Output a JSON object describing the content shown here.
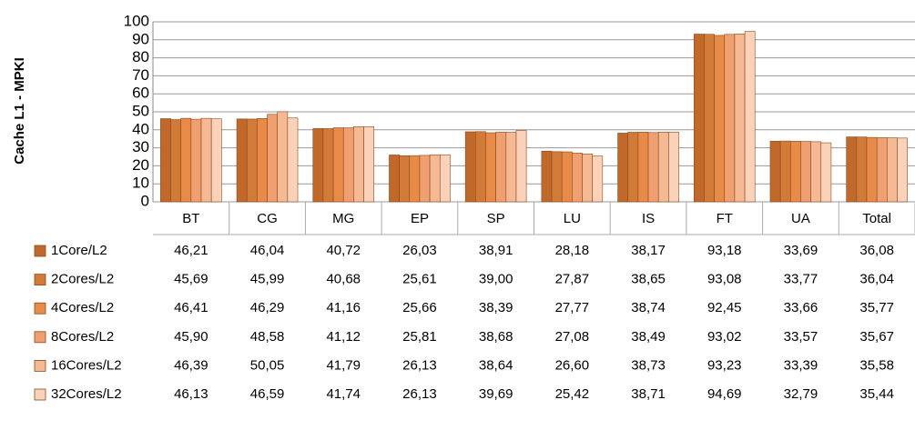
{
  "chart_data": {
    "type": "bar",
    "y_label": "Cache L1 - MPKI",
    "categories": [
      "BT",
      "CG",
      "MG",
      "EP",
      "SP",
      "LU",
      "IS",
      "FT",
      "UA",
      "Total"
    ],
    "ylim": [
      0,
      100
    ],
    "yticks": [
      0,
      10,
      20,
      30,
      40,
      50,
      60,
      70,
      80,
      90,
      100
    ],
    "grid": true,
    "series": [
      {
        "name": "1Core/L2",
        "color": "#c0692a",
        "values": [
          46.21,
          46.04,
          40.72,
          26.03,
          38.91,
          28.18,
          38.17,
          93.18,
          33.69,
          36.08
        ],
        "value_labels": [
          "46,21",
          "46,04",
          "40,72",
          "26,03",
          "38,91",
          "28,18",
          "38,17",
          "93,18",
          "33,69",
          "36,08"
        ]
      },
      {
        "name": "2Cores/L2",
        "color": "#d27a38",
        "values": [
          45.69,
          45.99,
          40.68,
          25.61,
          39.0,
          27.87,
          38.65,
          93.08,
          33.77,
          36.04
        ],
        "value_labels": [
          "45,69",
          "45,99",
          "40,68",
          "25,61",
          "39,00",
          "27,87",
          "38,65",
          "93,08",
          "33,77",
          "36,04"
        ]
      },
      {
        "name": "4Cores/L2",
        "color": "#e88a48",
        "values": [
          46.41,
          46.29,
          41.16,
          25.66,
          38.39,
          27.77,
          38.74,
          92.45,
          33.66,
          35.77
        ],
        "value_labels": [
          "46,41",
          "46,29",
          "41,16",
          "25,66",
          "38,39",
          "27,77",
          "38,74",
          "92,45",
          "33,66",
          "35,77"
        ]
      },
      {
        "name": "8Cores/L2",
        "color": "#f0a070",
        "values": [
          45.9,
          48.58,
          41.12,
          25.81,
          38.68,
          27.08,
          38.49,
          93.02,
          33.57,
          35.67
        ],
        "value_labels": [
          "45,90",
          "48,58",
          "41,12",
          "25,81",
          "38,68",
          "27,08",
          "38,49",
          "93,02",
          "33,57",
          "35,67"
        ]
      },
      {
        "name": "16Cores/L2",
        "color": "#f5b994",
        "values": [
          46.39,
          50.05,
          41.79,
          26.13,
          38.64,
          26.6,
          38.73,
          93.23,
          33.39,
          35.58
        ],
        "value_labels": [
          "46,39",
          "50,05",
          "41,79",
          "26,13",
          "38,64",
          "26,60",
          "38,73",
          "93,23",
          "33,39",
          "35,58"
        ]
      },
      {
        "name": "32Cores/L2",
        "color": "#fad2ba",
        "values": [
          46.13,
          46.59,
          41.74,
          26.13,
          39.69,
          25.42,
          38.71,
          94.69,
          32.79,
          35.44
        ],
        "value_labels": [
          "46,13",
          "46,59",
          "41,74",
          "26,13",
          "39,69",
          "25,42",
          "38,71",
          "94,69",
          "32,79",
          "35,44"
        ]
      }
    ]
  }
}
